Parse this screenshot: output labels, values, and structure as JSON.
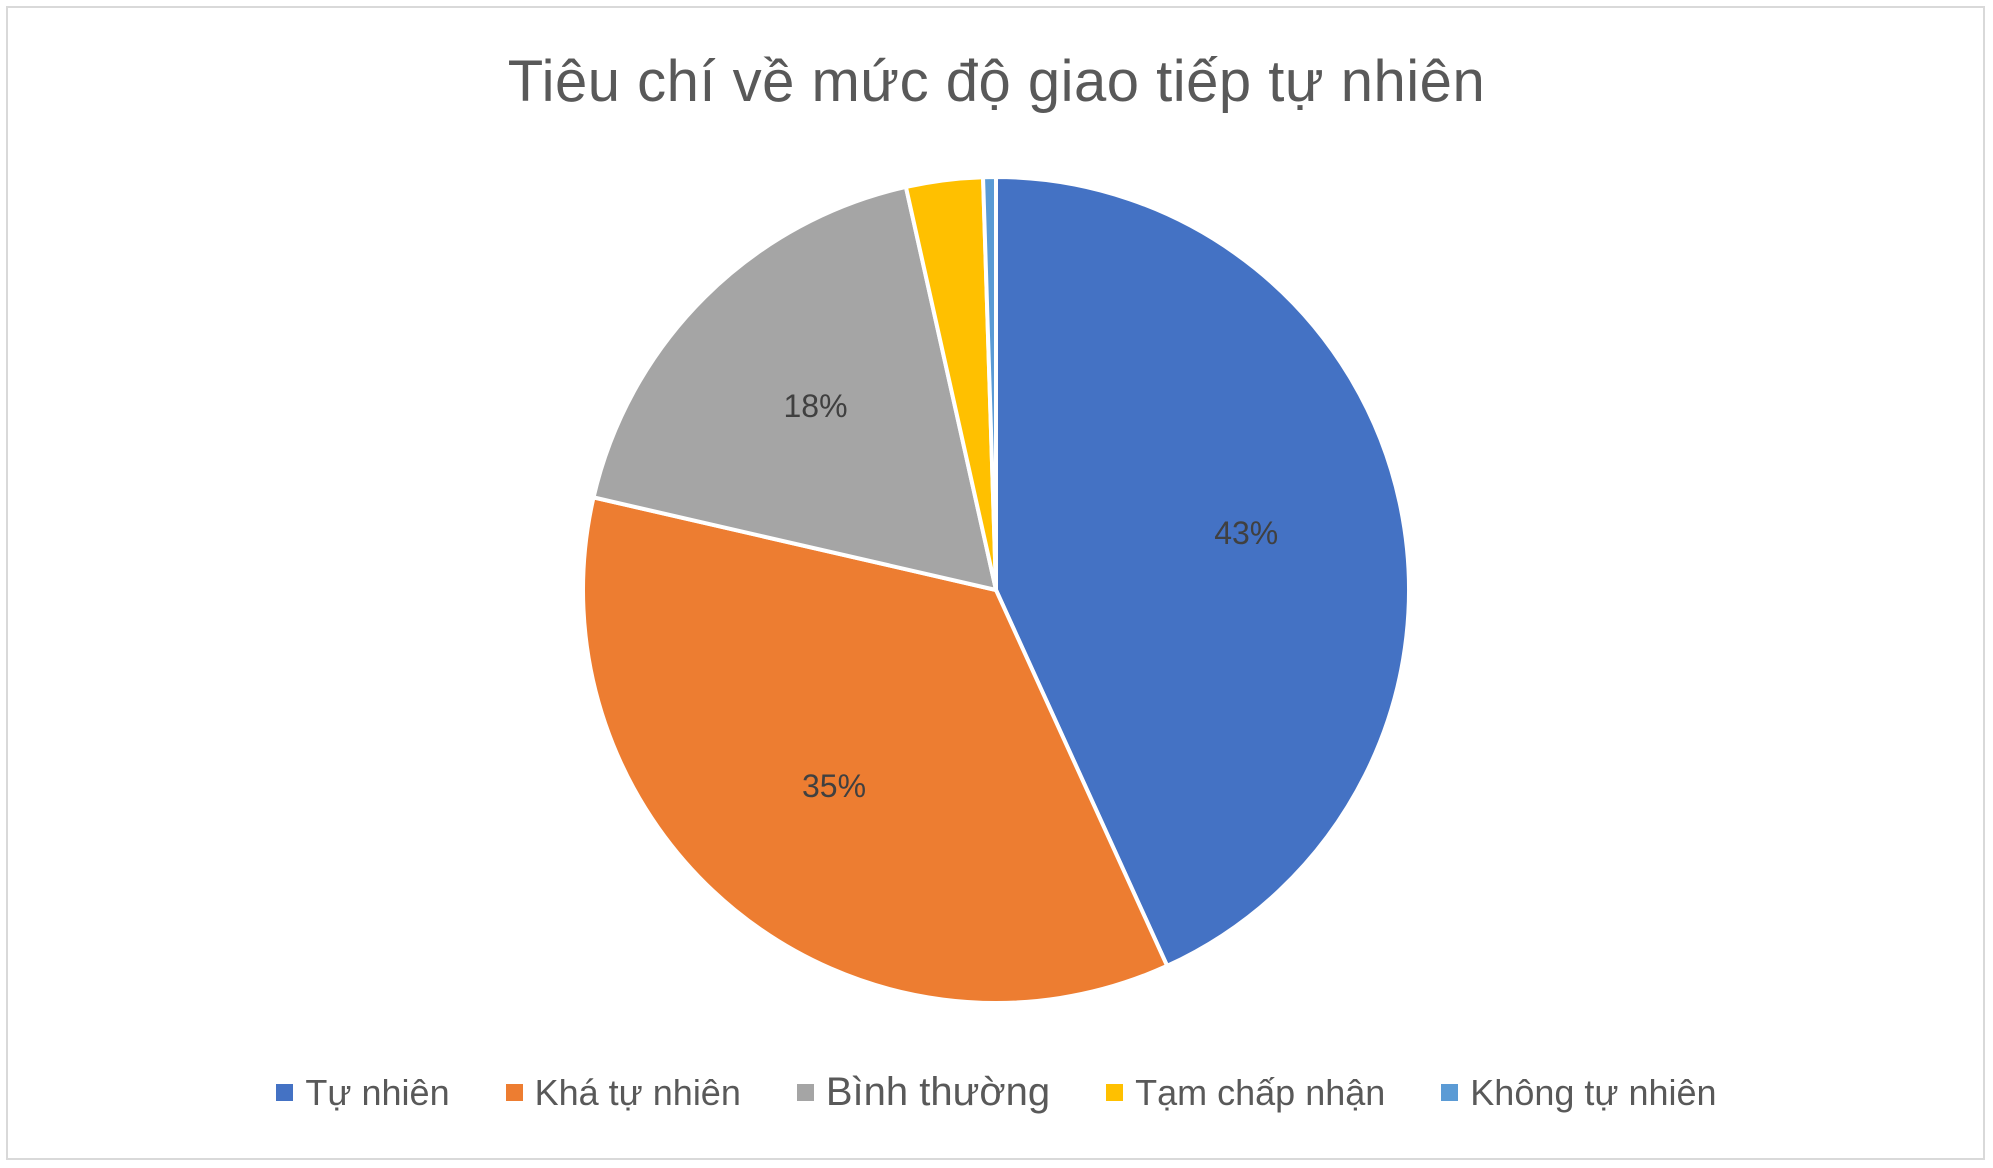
{
  "chart_data": {
    "type": "pie",
    "title": "Tiêu chí về mức độ giao tiếp tự nhiên",
    "categories": [
      "Tự nhiên",
      "Khá tự nhiên",
      "Bình thường",
      "Tạm chấp nhận",
      "Không tự nhiên"
    ],
    "values": [
      43.2,
      35.4,
      17.9,
      3.0,
      0.5
    ],
    "data_labels": [
      "43%",
      "35%",
      "18%",
      "",
      ""
    ],
    "colors": [
      "#4472C4",
      "#ED7D31",
      "#A5A5A5",
      "#FFC000",
      "#5B9BD5"
    ],
    "legend_position": "bottom",
    "start_angle_deg": 0,
    "direction": "clockwise"
  }
}
